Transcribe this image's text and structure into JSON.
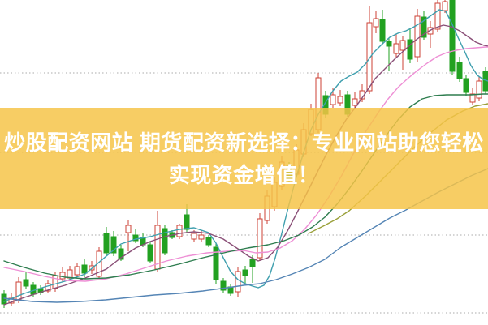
{
  "page": {
    "background": "#ffffff"
  },
  "banner": {
    "line1": "炒股配资网站 期货配资新选择：专业网站助您轻松",
    "line2": "实现资金增值！",
    "bg_color": "rgba(246,196,70,0.84)",
    "text_color": "#ffffff"
  },
  "chart_data": {
    "type": "candlestick",
    "title": "",
    "xlabel": "",
    "ylabel": "",
    "axis_labels_visible": false,
    "grid": {
      "on": true,
      "style": "dotted",
      "color": "#ababab",
      "price_levels": [
        64,
        160,
        262,
        360
      ]
    },
    "y_map": {
      "formula": "y_px = 450 - price",
      "ylim": [
        49,
        450
      ],
      "note": "no axis tick labels visible; prices are pixel-derived relative units"
    },
    "colors": {
      "up": "#cc4136",
      "up_fill": "#ffffff",
      "down": "#22a121"
    },
    "candle_body_width": 6,
    "candles_format": [
      "x",
      "open",
      "high",
      "low",
      "close"
    ],
    "candles": [
      [
        5,
        87,
        92,
        70,
        75
      ],
      [
        14,
        76,
        88,
        72,
        82
      ],
      [
        23,
        80,
        108,
        76,
        102
      ],
      [
        32,
        105,
        115,
        93,
        97
      ],
      [
        41,
        98,
        102,
        84,
        87
      ],
      [
        50,
        94,
        98,
        86,
        89
      ],
      [
        59,
        91,
        104,
        88,
        100
      ],
      [
        68,
        94,
        115,
        90,
        110
      ],
      [
        77,
        106,
        120,
        102,
        114
      ],
      [
        86,
        107,
        122,
        104,
        117
      ],
      [
        95,
        111,
        125,
        108,
        121
      ],
      [
        104,
        123,
        130,
        108,
        113
      ],
      [
        113,
        117,
        128,
        112,
        122
      ],
      [
        122,
        109,
        145,
        106,
        140
      ],
      [
        131,
        162,
        170,
        135,
        138
      ],
      [
        140,
        158,
        165,
        134,
        138
      ],
      [
        149,
        143,
        148,
        128,
        130
      ],
      [
        158,
        163,
        179,
        140,
        172
      ],
      [
        167,
        160,
        168,
        150,
        153
      ],
      [
        176,
        157,
        162,
        145,
        148
      ],
      [
        185,
        148,
        152,
        125,
        128
      ],
      [
        194,
        118,
        190,
        115,
        172
      ],
      [
        203,
        168,
        172,
        135,
        138
      ],
      [
        212,
        163,
        166,
        155,
        157
      ],
      [
        221,
        158,
        174,
        155,
        172
      ],
      [
        230,
        185,
        198,
        163,
        167
      ],
      [
        239,
        155,
        166,
        152,
        162
      ],
      [
        248,
        155,
        166,
        152,
        160
      ],
      [
        257,
        157,
        160,
        145,
        148
      ],
      [
        266,
        145,
        150,
        100,
        105
      ],
      [
        275,
        103,
        107,
        89,
        92
      ],
      [
        284,
        96,
        100,
        85,
        88
      ],
      [
        293,
        90,
        120,
        84,
        115
      ],
      [
        302,
        117,
        122,
        100,
        110
      ],
      [
        311,
        130,
        135,
        101,
        121
      ],
      [
        320,
        132,
        187,
        128,
        180
      ],
      [
        329,
        178,
        215,
        174,
        208
      ],
      [
        338,
        195,
        232,
        190,
        225
      ],
      [
        347,
        220,
        258,
        216,
        250
      ],
      [
        356,
        245,
        250,
        224,
        228
      ],
      [
        365,
        235,
        272,
        232,
        265
      ],
      [
        374,
        260,
        298,
        256,
        290
      ],
      [
        383,
        285,
        322,
        282,
        315
      ],
      [
        392,
        290,
        360,
        286,
        354
      ],
      [
        401,
        332,
        338,
        305,
        309
      ],
      [
        410,
        321,
        341,
        317,
        333
      ],
      [
        419,
        323,
        339,
        319,
        331
      ],
      [
        428,
        333,
        338,
        306,
        309
      ],
      [
        437,
        320,
        336,
        316,
        328
      ],
      [
        446,
        328,
        346,
        324,
        338
      ],
      [
        455,
        338,
        442,
        334,
        422
      ],
      [
        463,
        417,
        436,
        409,
        427
      ],
      [
        471,
        426,
        438,
        394,
        399
      ],
      [
        479,
        399,
        403,
        362,
        393
      ],
      [
        488,
        384,
        408,
        379,
        396
      ],
      [
        496,
        388,
        406,
        364,
        400
      ],
      [
        505,
        401,
        414,
        372,
        377
      ],
      [
        514,
        380,
        439,
        374,
        430
      ],
      [
        522,
        429,
        436,
        401,
        404
      ],
      [
        530,
        408,
        424,
        391,
        416
      ],
      [
        539,
        414,
        450,
        410,
        446
      ],
      [
        548,
        437,
        450,
        434,
        448
      ],
      [
        557,
        450,
        450,
        357,
        362
      ],
      [
        566,
        373,
        380,
        349,
        353
      ],
      [
        574,
        353,
        358,
        332,
        336
      ],
      [
        582,
        324,
        341,
        321,
        334
      ],
      [
        590,
        329,
        356,
        325,
        350
      ],
      [
        598,
        362,
        367,
        334,
        338
      ]
    ],
    "ma_lines": [
      {
        "name": "ma-short-teal",
        "color": "#3f9fae",
        "width": 1.4,
        "points": [
          [
            5,
            78
          ],
          [
            30,
            88
          ],
          [
            55,
            96
          ],
          [
            80,
            103
          ],
          [
            105,
            112
          ],
          [
            131,
            134
          ],
          [
            149,
            149
          ],
          [
            167,
            155
          ],
          [
            185,
            158
          ],
          [
            203,
            163
          ],
          [
            221,
            167
          ],
          [
            239,
            169
          ],
          [
            257,
            163
          ],
          [
            266,
            150
          ],
          [
            275,
            132
          ],
          [
            284,
            115
          ],
          [
            293,
            105
          ],
          [
            302,
            100
          ],
          [
            311,
            97
          ],
          [
            318,
            95
          ],
          [
            325,
            98
          ],
          [
            332,
            110
          ],
          [
            339,
            132
          ],
          [
            347,
            162
          ],
          [
            356,
            198
          ],
          [
            365,
            232
          ],
          [
            374,
            262
          ],
          [
            383,
            290
          ],
          [
            392,
            309
          ],
          [
            400,
            322
          ],
          [
            410,
            338
          ],
          [
            420,
            350
          ],
          [
            430,
            356
          ],
          [
            440,
            361
          ],
          [
            450,
            371
          ],
          [
            460,
            385
          ],
          [
            470,
            395
          ],
          [
            480,
            404
          ],
          [
            490,
            409
          ],
          [
            500,
            412
          ],
          [
            510,
            417
          ],
          [
            520,
            423
          ],
          [
            531,
            431
          ],
          [
            541,
            438
          ],
          [
            549,
            436
          ],
          [
            556,
            422
          ],
          [
            564,
            404
          ],
          [
            572,
            387
          ],
          [
            580,
            369
          ],
          [
            588,
            357
          ],
          [
            595,
            352
          ],
          [
            601,
            350
          ]
        ]
      },
      {
        "name": "ma-mid-purple",
        "color": "#8a4f77",
        "width": 1.4,
        "points": [
          [
            5,
            74
          ],
          [
            30,
            83
          ],
          [
            55,
            91
          ],
          [
            80,
            98
          ],
          [
            105,
            107
          ],
          [
            131,
            118
          ],
          [
            149,
            132
          ],
          [
            167,
            144
          ],
          [
            185,
            152
          ],
          [
            203,
            158
          ],
          [
            221,
            162
          ],
          [
            239,
            164
          ],
          [
            257,
            162
          ],
          [
            275,
            155
          ],
          [
            293,
            143
          ],
          [
            306,
            134
          ],
          [
            318,
            128
          ],
          [
            330,
            132
          ],
          [
            342,
            145
          ],
          [
            354,
            165
          ],
          [
            366,
            188
          ],
          [
            378,
            212
          ],
          [
            390,
            236
          ],
          [
            402,
            260
          ],
          [
            414,
            282
          ],
          [
            426,
            302
          ],
          [
            438,
            318
          ],
          [
            450,
            335
          ],
          [
            462,
            353
          ],
          [
            474,
            365
          ],
          [
            486,
            377
          ],
          [
            498,
            388
          ],
          [
            510,
            399
          ],
          [
            522,
            408
          ],
          [
            534,
            415
          ],
          [
            546,
            419
          ],
          [
            556,
            417
          ],
          [
            566,
            412
          ],
          [
            576,
            405
          ],
          [
            586,
            398
          ],
          [
            596,
            394
          ],
          [
            601,
            393
          ]
        ]
      },
      {
        "name": "ma-mid-pink",
        "color": "#ee8fd5",
        "width": 1.4,
        "points": [
          [
            5,
            120
          ],
          [
            30,
            115
          ],
          [
            55,
            109
          ],
          [
            80,
            104
          ],
          [
            105,
            103
          ],
          [
            131,
            106
          ],
          [
            155,
            112
          ],
          [
            180,
            120
          ],
          [
            205,
            128
          ],
          [
            230,
            134
          ],
          [
            255,
            138
          ],
          [
            280,
            140
          ],
          [
            300,
            141
          ],
          [
            315,
            138
          ],
          [
            330,
            139
          ],
          [
            345,
            144
          ],
          [
            360,
            153
          ],
          [
            375,
            167
          ],
          [
            390,
            185
          ],
          [
            405,
            207
          ],
          [
            420,
            232
          ],
          [
            435,
            260
          ],
          [
            450,
            287
          ],
          [
            465,
            310
          ],
          [
            478,
            328
          ],
          [
            490,
            342
          ],
          [
            502,
            353
          ],
          [
            514,
            363
          ],
          [
            526,
            372
          ],
          [
            538,
            380
          ],
          [
            550,
            385
          ],
          [
            562,
            388
          ],
          [
            574,
            390
          ],
          [
            586,
            391
          ],
          [
            598,
            392
          ],
          [
            601,
            392
          ]
        ]
      },
      {
        "name": "ma-long-green",
        "color": "#2e7d4f",
        "width": 1.4,
        "points": [
          [
            5,
            128
          ],
          [
            30,
            120
          ],
          [
            55,
            113
          ],
          [
            80,
            108
          ],
          [
            105,
            106
          ],
          [
            131,
            107
          ],
          [
            160,
            111
          ],
          [
            190,
            117
          ],
          [
            220,
            124
          ],
          [
            250,
            132
          ],
          [
            280,
            139
          ],
          [
            305,
            144
          ],
          [
            330,
            148
          ],
          [
            350,
            153
          ],
          [
            368,
            160
          ],
          [
            385,
            170
          ],
          [
            400,
            182
          ],
          [
            415,
            198
          ],
          [
            430,
            217
          ],
          [
            445,
            238
          ],
          [
            460,
            260
          ],
          [
            475,
            282
          ],
          [
            490,
            302
          ],
          [
            505,
            318
          ],
          [
            520,
            328
          ],
          [
            535,
            332
          ],
          [
            550,
            333
          ],
          [
            565,
            333
          ],
          [
            580,
            333
          ],
          [
            595,
            334
          ],
          [
            601,
            334
          ]
        ]
      },
      {
        "name": "ma-long-olive",
        "color": "#9aa03a",
        "width": 1.4,
        "points": [
          [
            380,
            162
          ],
          [
            400,
            172
          ],
          [
            415,
            180
          ],
          [
            430,
            190
          ],
          [
            450,
            208
          ],
          [
            470,
            228
          ],
          [
            490,
            248
          ],
          [
            510,
            268
          ],
          [
            530,
            286
          ],
          [
            550,
            302
          ],
          [
            570,
            313
          ],
          [
            585,
            319
          ],
          [
            601,
            322
          ]
        ]
      },
      {
        "name": "ma-longest-steelblue",
        "color": "#5585b5",
        "width": 1.4,
        "points": [
          [
            5,
            82
          ],
          [
            40,
            78
          ],
          [
            70,
            77
          ],
          [
            100,
            78
          ],
          [
            130,
            80
          ],
          [
            160,
            83
          ],
          [
            190,
            86
          ],
          [
            220,
            88
          ],
          [
            250,
            91
          ],
          [
            280,
            95
          ],
          [
            300,
            98
          ],
          [
            320,
            100
          ],
          [
            340,
            105
          ],
          [
            360,
            112
          ],
          [
            380,
            120
          ],
          [
            400,
            130
          ],
          [
            420,
            145
          ],
          [
            440,
            157
          ],
          [
            460,
            169
          ],
          [
            480,
            181
          ],
          [
            500,
            191
          ],
          [
            520,
            202
          ],
          [
            540,
            213
          ],
          [
            560,
            223
          ],
          [
            580,
            233
          ],
          [
            601,
            242
          ]
        ]
      }
    ]
  }
}
